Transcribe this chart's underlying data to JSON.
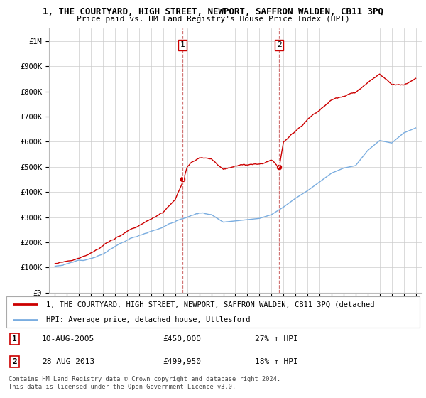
{
  "title": "1, THE COURTYARD, HIGH STREET, NEWPORT, SAFFRON WALDEN, CB11 3PQ",
  "subtitle": "Price paid vs. HM Land Registry's House Price Index (HPI)",
  "ylabel_ticks": [
    "£0",
    "£100K",
    "£200K",
    "£300K",
    "£400K",
    "£500K",
    "£600K",
    "£700K",
    "£800K",
    "£900K",
    "£1M"
  ],
  "ytick_values": [
    0,
    100000,
    200000,
    300000,
    400000,
    500000,
    600000,
    700000,
    800000,
    900000,
    1000000
  ],
  "ylim": [
    0,
    1050000
  ],
  "xlim_start": 1994.5,
  "xlim_end": 2025.5,
  "xtick_years": [
    1995,
    1996,
    1997,
    1998,
    1999,
    2000,
    2001,
    2002,
    2003,
    2004,
    2005,
    2006,
    2007,
    2008,
    2009,
    2010,
    2011,
    2012,
    2013,
    2014,
    2015,
    2016,
    2017,
    2018,
    2019,
    2020,
    2021,
    2022,
    2023,
    2024,
    2025
  ],
  "sale1_x": 2005.62,
  "sale1_y": 450000,
  "sale1_label": "1",
  "sale1_date": "10-AUG-2005",
  "sale1_price": "£450,000",
  "sale1_hpi": "27% ↑ HPI",
  "sale2_x": 2013.65,
  "sale2_y": 499950,
  "sale2_label": "2",
  "sale2_date": "28-AUG-2013",
  "sale2_price": "£499,950",
  "sale2_hpi": "18% ↑ HPI",
  "vline1_x": 2005.62,
  "vline2_x": 2013.65,
  "line_color_red": "#cc0000",
  "line_color_blue": "#7aade0",
  "marker_color_red": "#cc0000",
  "background_color": "#ffffff",
  "grid_color": "#cccccc",
  "legend_line1": "1, THE COURTYARD, HIGH STREET, NEWPORT, SAFFRON WALDEN, CB11 3PQ (detached",
  "legend_line2": "HPI: Average price, detached house, Uttlesford",
  "footnote": "Contains HM Land Registry data © Crown copyright and database right 2024.\nThis data is licensed under the Open Government Licence v3.0."
}
